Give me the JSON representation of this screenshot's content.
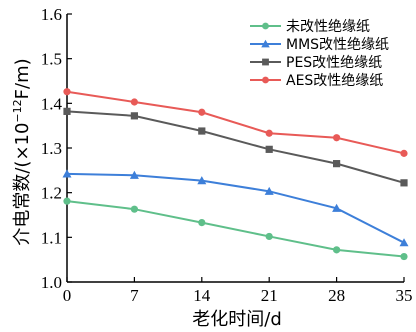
{
  "chart_data": {
    "type": "line",
    "x": [
      0,
      7,
      14,
      21,
      28,
      35
    ],
    "x_ticks": [
      "0",
      "7",
      "14",
      "21",
      "28",
      "35"
    ],
    "y_ticks": [
      "1.0",
      "1.1",
      "1.2",
      "1.3",
      "1.4",
      "1.5",
      "1.6"
    ],
    "xlabel": "老化时间/d",
    "ylabel_prefix": "介电常数/(×10",
    "ylabel_exp": "−12",
    "ylabel_suffix": "F/m)",
    "xlim": [
      0,
      35
    ],
    "ylim": [
      1.0,
      1.6
    ],
    "grid": false,
    "legend_position": "top-right",
    "series": [
      {
        "name": "未改性绝缘纸",
        "color": "#5fbf8a",
        "marker": "circle",
        "values": [
          1.181,
          1.163,
          1.133,
          1.102,
          1.072,
          1.057
        ]
      },
      {
        "name": "MMS改性绝缘纸",
        "color": "#3d7fd9",
        "marker": "triangle",
        "values": [
          1.242,
          1.239,
          1.227,
          1.203,
          1.165,
          1.088
        ]
      },
      {
        "name": "PES改性绝缘纸",
        "color": "#5a5a5a",
        "marker": "square",
        "values": [
          1.382,
          1.372,
          1.338,
          1.297,
          1.265,
          1.222
        ]
      },
      {
        "name": "AES改性绝缘纸",
        "color": "#e85a57",
        "marker": "circle",
        "values": [
          1.426,
          1.403,
          1.38,
          1.333,
          1.323,
          1.288
        ]
      }
    ]
  }
}
